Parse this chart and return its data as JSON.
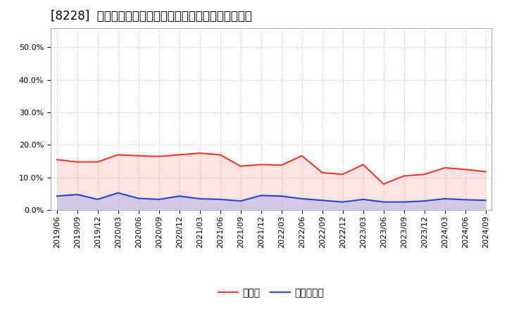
{
  "title": "[8228]  現預金、有利子負債の総資産に対する比率の推移",
  "x_labels": [
    "2019/06",
    "2019/09",
    "2019/12",
    "2020/03",
    "2020/06",
    "2020/09",
    "2020/12",
    "2021/03",
    "2021/06",
    "2021/09",
    "2021/12",
    "2022/03",
    "2022/06",
    "2022/09",
    "2022/12",
    "2023/03",
    "2023/06",
    "2023/09",
    "2023/12",
    "2024/03",
    "2024/06",
    "2024/09"
  ],
  "cash": [
    0.155,
    0.148,
    0.148,
    0.17,
    0.167,
    0.165,
    0.17,
    0.175,
    0.17,
    0.135,
    0.14,
    0.138,
    0.167,
    0.115,
    0.11,
    0.14,
    0.08,
    0.105,
    0.11,
    0.13,
    0.125,
    0.118
  ],
  "debt": [
    0.043,
    0.048,
    0.033,
    0.053,
    0.036,
    0.033,
    0.043,
    0.035,
    0.033,
    0.028,
    0.045,
    0.043,
    0.035,
    0.03,
    0.025,
    0.033,
    0.025,
    0.025,
    0.028,
    0.035,
    0.032,
    0.03
  ],
  "cash_color": "#e8392a",
  "debt_color": "#2645c8",
  "cash_fill_color": "#f5b0aa",
  "debt_fill_color": "#aab0f0",
  "background_color": "#ffffff",
  "plot_bg_color": "#ffffff",
  "grid_color": "#bbbbbb",
  "spine_color": "#aaaaaa",
  "ylim": [
    0.0,
    0.56
  ],
  "yticks": [
    0.0,
    0.1,
    0.2,
    0.3,
    0.4,
    0.5
  ],
  "legend_cash": "現預金",
  "legend_debt": "有利子負債",
  "title_fontsize": 12,
  "tick_fontsize": 8,
  "legend_fontsize": 10
}
